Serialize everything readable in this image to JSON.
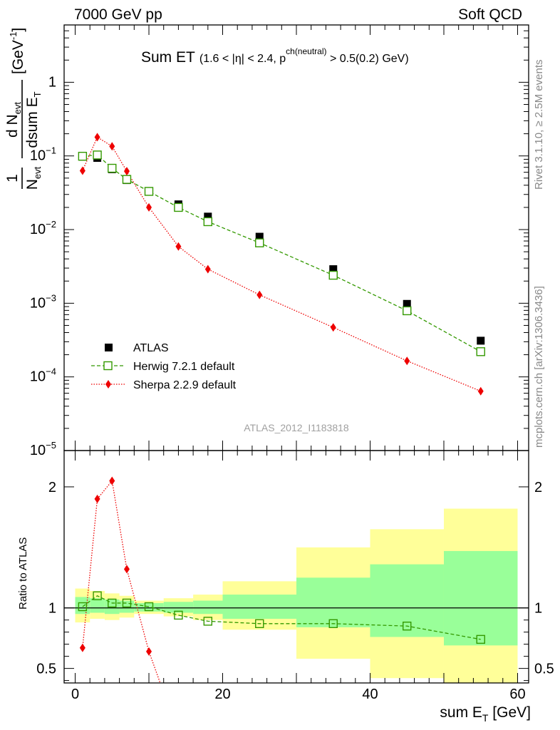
{
  "header": {
    "left": "7000 GeV pp",
    "right": "Soft QCD"
  },
  "title": {
    "main": "Sum ET",
    "cond_a": "(1.6 < |η| < 2.4, p",
    "cond_sup": "ch(neutral)",
    "cond_b": " > 0.5(0.2) GeV)"
  },
  "ylabel": {
    "top_num": "1",
    "top_den": "N",
    "top_den_sub": "evt",
    "d_num": "d N",
    "d_num_sub": "evt",
    "d_den": "dsum E",
    "d_den_sub": "T",
    "unit": "[GeV",
    "unit_sup": "-1",
    "unit_end": "]"
  },
  "xlabel": {
    "text": "sum E",
    "sub": "T",
    "unit": " [GeV]"
  },
  "ratio_ylabel": "Ratio to ATLAS",
  "side_text": {
    "rivet": "Rivet 3.1.10, ≥ 2.5M events",
    "mcplots": "mcplots.cern.ch [arXiv:1306.3436]"
  },
  "analysis_id": "ATLAS_2012_I1183818",
  "legend": [
    {
      "label": "ATLAS"
    },
    {
      "label": "Herwig 7.2.1 default"
    },
    {
      "label": "Sherpa 2.2.9 default"
    }
  ],
  "colors": {
    "atlas": "#000000",
    "herwig": "#339900",
    "sherpa": "#ee0000",
    "band_green": "#99ff99",
    "band_yellow": "#ffff99"
  },
  "chart_data": [
    {
      "type": "scatter",
      "panel": "main",
      "yscale": "log",
      "xlim": [
        -1.5,
        61.5
      ],
      "ylim": [
        1e-05,
        6
      ],
      "y_ticks": [
        {
          "value": 1e-05,
          "mant": "10",
          "exp": "−5"
        },
        {
          "value": 0.0001,
          "mant": "10",
          "exp": "−4"
        },
        {
          "value": 0.001,
          "mant": "10",
          "exp": "−3"
        },
        {
          "value": 0.01,
          "mant": "10",
          "exp": "−2"
        },
        {
          "value": 0.1,
          "mant": "10",
          "exp": "−1"
        },
        {
          "value": 1,
          "mant": "1",
          "exp": ""
        }
      ],
      "series": [
        {
          "name": "ATLAS",
          "x": [
            1,
            3,
            5,
            7,
            10,
            14,
            18,
            25,
            35,
            45,
            55
          ],
          "y": [
            0.098,
            0.094,
            0.066,
            0.047,
            0.033,
            0.022,
            0.015,
            0.008,
            0.0029,
            0.00098,
            0.00031
          ]
        },
        {
          "name": "Herwig 7.2.1 default",
          "x": [
            1,
            3,
            5,
            7,
            10,
            14,
            18,
            25,
            35,
            45,
            55
          ],
          "y": [
            0.099,
            0.103,
            0.068,
            0.048,
            0.033,
            0.02,
            0.0128,
            0.0066,
            0.0024,
            0.00079,
            0.00022
          ]
        },
        {
          "name": "Sherpa 2.2.9 default",
          "x": [
            1,
            3,
            5,
            7,
            10,
            14,
            18,
            25,
            35,
            45,
            55
          ],
          "y": [
            0.063,
            0.18,
            0.135,
            0.062,
            0.02,
            0.0059,
            0.0029,
            0.0013,
            0.00047,
            0.000165,
            6.4e-05
          ]
        }
      ]
    },
    {
      "type": "line",
      "panel": "ratio",
      "xlim": [
        -1.5,
        61.5
      ],
      "ylim": [
        0.38,
        2.3
      ],
      "x_ticks": [
        0,
        20,
        40,
        60
      ],
      "y_ticks": [
        0.5,
        1,
        2
      ],
      "reference": 1,
      "bands": [
        {
          "x0": 0,
          "x1": 2,
          "green": [
            0.95,
            1.09
          ],
          "yellow": [
            0.88,
            1.16
          ]
        },
        {
          "x0": 2,
          "x1": 4,
          "green": [
            0.96,
            1.08
          ],
          "yellow": [
            0.91,
            1.14
          ]
        },
        {
          "x0": 4,
          "x1": 6,
          "green": [
            0.95,
            1.07
          ],
          "yellow": [
            0.9,
            1.12
          ]
        },
        {
          "x0": 6,
          "x1": 8,
          "green": [
            0.96,
            1.06
          ],
          "yellow": [
            0.92,
            1.1
          ]
        },
        {
          "x0": 8,
          "x1": 12,
          "green": [
            0.97,
            1.04
          ],
          "yellow": [
            0.95,
            1.06
          ]
        },
        {
          "x0": 12,
          "x1": 16,
          "green": [
            0.96,
            1.05
          ],
          "yellow": [
            0.93,
            1.08
          ]
        },
        {
          "x0": 16,
          "x1": 20,
          "green": [
            0.95,
            1.06
          ],
          "yellow": [
            0.9,
            1.11
          ]
        },
        {
          "x0": 20,
          "x1": 30,
          "green": [
            0.91,
            1.11
          ],
          "yellow": [
            0.82,
            1.22
          ]
        },
        {
          "x0": 30,
          "x1": 40,
          "green": [
            0.84,
            1.25
          ],
          "yellow": [
            0.58,
            1.5
          ]
        },
        {
          "x0": 40,
          "x1": 50,
          "green": [
            0.76,
            1.36
          ],
          "yellow": [
            0.42,
            1.65
          ]
        },
        {
          "x0": 50,
          "x1": 60,
          "green": [
            0.69,
            1.47
          ],
          "yellow": [
            0.35,
            1.82
          ]
        }
      ],
      "series": [
        {
          "name": "Herwig 7.2.1 default",
          "x": [
            1,
            3,
            5,
            7,
            10,
            14,
            18,
            25,
            35,
            45,
            55
          ],
          "y": [
            1.01,
            1.1,
            1.04,
            1.04,
            1.01,
            0.94,
            0.89,
            0.87,
            0.87,
            0.85,
            0.74
          ]
        },
        {
          "name": "Sherpa 2.2.9 default",
          "x": [
            1,
            3,
            5,
            7,
            10,
            12
          ],
          "y": [
            0.67,
            1.9,
            2.05,
            1.32,
            0.64,
            0.3
          ]
        }
      ]
    }
  ]
}
